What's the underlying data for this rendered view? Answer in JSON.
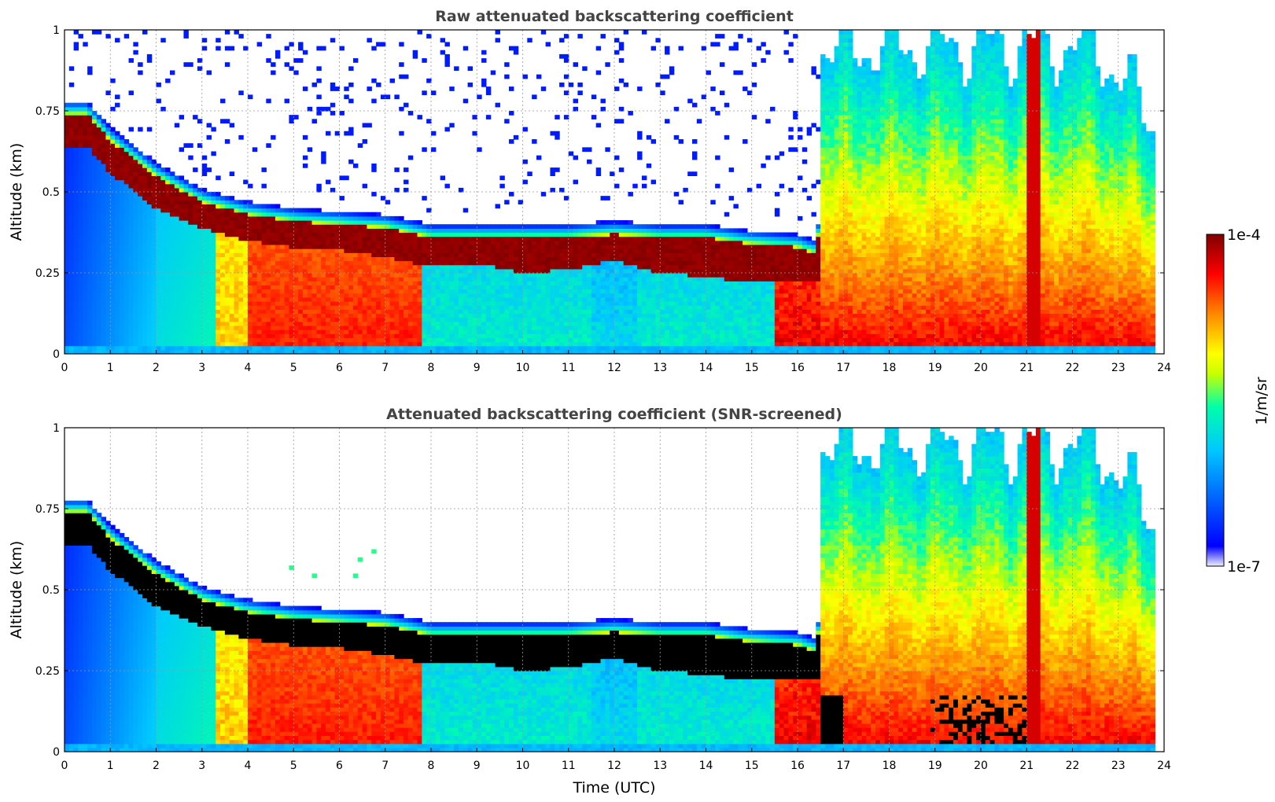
{
  "chart_data": [
    {
      "type": "heatmap",
      "title": "Raw attenuated backscattering coefficient",
      "xlabel": "",
      "ylabel": "Altitude (km)",
      "xlim": [
        0,
        24
      ],
      "ylim": [
        0,
        1
      ],
      "x_ticks": [
        "0",
        "1",
        "2",
        "3",
        "4",
        "5",
        "6",
        "7",
        "8",
        "9",
        "10",
        "11",
        "12",
        "13",
        "14",
        "15",
        "16",
        "17",
        "18",
        "19",
        "20",
        "21",
        "22",
        "23",
        "24"
      ],
      "y_ticks": [
        "0",
        "0.25",
        "0.5",
        "0.75",
        "1"
      ],
      "grid": true,
      "screened": false,
      "layer_top_km": [
        [
          0.5,
          0.74
        ],
        [
          1,
          0.66
        ],
        [
          2,
          0.55
        ],
        [
          3,
          0.47
        ],
        [
          4,
          0.43
        ],
        [
          5,
          0.41
        ],
        [
          6,
          0.4
        ],
        [
          7,
          0.39
        ],
        [
          8,
          0.36
        ],
        [
          9,
          0.36
        ],
        [
          10,
          0.36
        ],
        [
          11,
          0.36
        ],
        [
          12,
          0.37
        ],
        [
          13,
          0.36
        ],
        [
          14,
          0.36
        ],
        [
          15,
          0.34
        ],
        [
          16,
          0.33
        ],
        [
          16.4,
          0.31
        ],
        [
          17,
          0.98
        ]
      ],
      "layer_bottom_km": [
        [
          0.5,
          0.64
        ],
        [
          1,
          0.56
        ],
        [
          2,
          0.45
        ],
        [
          3,
          0.39
        ],
        [
          4,
          0.35
        ],
        [
          5,
          0.33
        ],
        [
          6,
          0.32
        ],
        [
          7,
          0.3
        ],
        [
          8,
          0.27
        ],
        [
          9,
          0.28
        ],
        [
          10,
          0.25
        ],
        [
          11,
          0.26
        ],
        [
          12,
          0.29
        ],
        [
          13,
          0.25
        ],
        [
          14,
          0.24
        ],
        [
          15,
          0.22
        ],
        [
          16,
          0.22
        ],
        [
          16.4,
          0.22
        ]
      ]
    },
    {
      "type": "heatmap",
      "title": "Attenuated backscattering coefficient (SNR-screened)",
      "xlabel": "Time (UTC)",
      "ylabel": "Altitude (km)",
      "xlim": [
        0,
        24
      ],
      "ylim": [
        0,
        1
      ],
      "x_ticks": [
        "0",
        "1",
        "2",
        "3",
        "4",
        "5",
        "6",
        "7",
        "8",
        "9",
        "10",
        "11",
        "12",
        "13",
        "14",
        "15",
        "16",
        "17",
        "18",
        "19",
        "20",
        "21",
        "22",
        "23",
        "24"
      ],
      "y_ticks": [
        "0",
        "0.25",
        "0.5",
        "0.75",
        "1"
      ],
      "grid": true,
      "screened": true
    }
  ],
  "colorbar": {
    "label": "1/m/sr",
    "max_label": "1e-4",
    "min_label": "1e-7",
    "scale": "log",
    "colormap": "jet",
    "stops": [
      "#f0f0ff",
      "#0000ff",
      "#00c8ff",
      "#00ffaa",
      "#c8ff00",
      "#ffff00",
      "#ff8800",
      "#ff0000",
      "#800000"
    ]
  }
}
